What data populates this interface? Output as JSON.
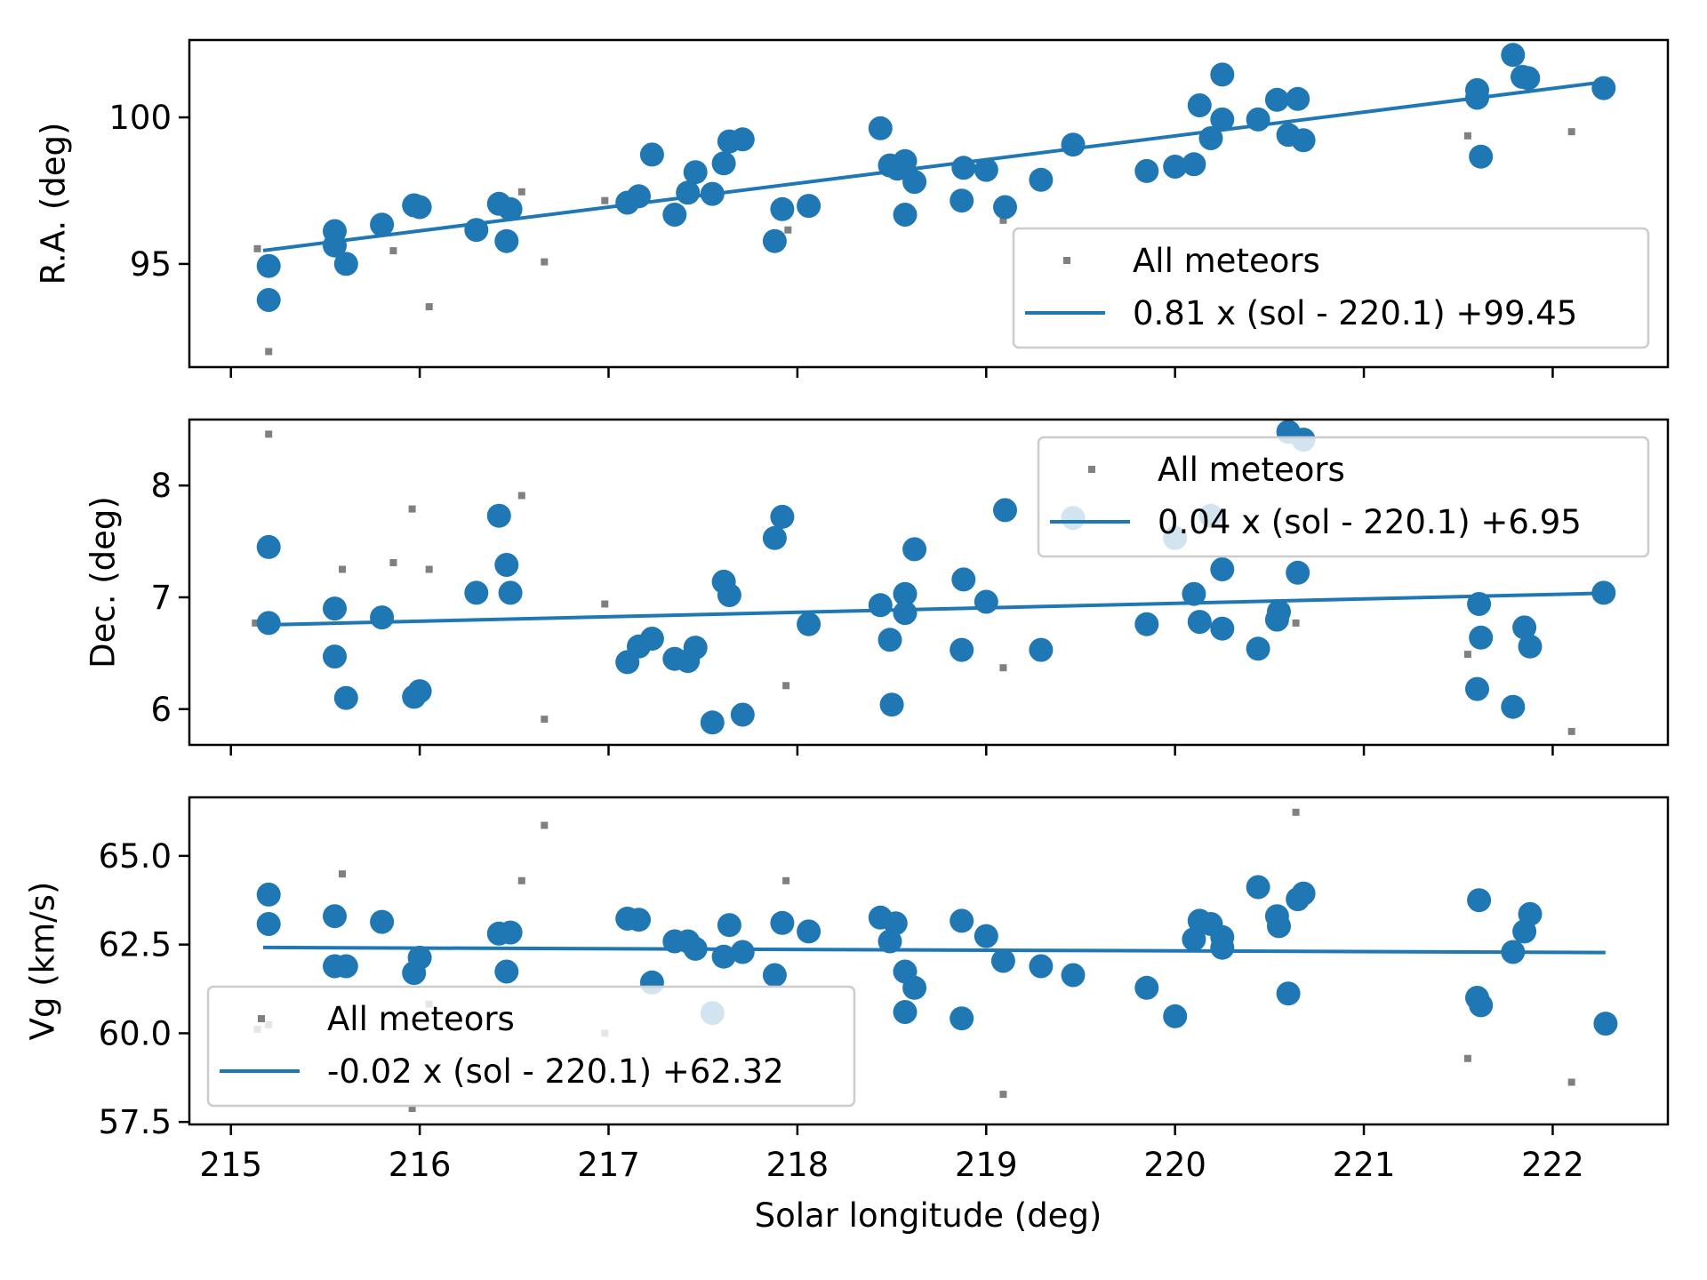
{
  "chart_data": {
    "type": "scatter",
    "layout": "3 vertically stacked panels sharing x axis",
    "xlabel": "Solar longitude (deg)",
    "xlim": [
      214.78,
      222.61
    ],
    "x_ticks": [
      215,
      216,
      217,
      218,
      219,
      220,
      221,
      222
    ],
    "x_tick_labels": [
      "215",
      "216",
      "217",
      "218",
      "219",
      "220",
      "221",
      "222"
    ],
    "colors": {
      "selected": "#1f77b4",
      "all": "#808080",
      "fit": "#1f77b4",
      "legend_edge": "#cccccc"
    },
    "panels": [
      {
        "id": "ra",
        "ylabel": "R.A. (deg)",
        "ylim": [
          91.48,
          102.64
        ],
        "y_ticks": [
          95,
          100
        ],
        "y_tick_labels": [
          "95",
          "100"
        ],
        "legend": {
          "position": "lower right",
          "entries": [
            "All meteors",
            "0.81 x (sol - 220.1) +99.45"
          ]
        },
        "fit": {
          "slope": 0.81,
          "ref": 220.1,
          "intercept": 99.45,
          "x_range": [
            215.18,
            222.27
          ]
        },
        "selected": [
          [
            215.2,
            94.93
          ],
          [
            215.2,
            93.77
          ],
          [
            215.55,
            96.12
          ],
          [
            215.55,
            95.63
          ],
          [
            215.61,
            95.0
          ],
          [
            215.8,
            96.34
          ],
          [
            215.97,
            97.0
          ],
          [
            216.0,
            96.94
          ],
          [
            216.3,
            96.16
          ],
          [
            216.42,
            97.05
          ],
          [
            216.48,
            96.87
          ],
          [
            216.46,
            95.78
          ],
          [
            217.1,
            97.09
          ],
          [
            217.16,
            97.31
          ],
          [
            217.23,
            98.73
          ],
          [
            217.35,
            96.68
          ],
          [
            217.42,
            97.43
          ],
          [
            217.46,
            98.13
          ],
          [
            217.55,
            97.39
          ],
          [
            217.61,
            98.43
          ],
          [
            217.64,
            99.18
          ],
          [
            217.71,
            99.25
          ],
          [
            217.88,
            95.78
          ],
          [
            217.92,
            96.87
          ],
          [
            218.06,
            96.98
          ],
          [
            218.44,
            99.63
          ],
          [
            218.49,
            98.36
          ],
          [
            218.53,
            98.25
          ],
          [
            218.57,
            98.51
          ],
          [
            218.57,
            96.68
          ],
          [
            218.62,
            97.8
          ],
          [
            218.87,
            97.16
          ],
          [
            218.88,
            98.28
          ],
          [
            219.0,
            98.21
          ],
          [
            219.1,
            96.94
          ],
          [
            219.29,
            97.87
          ],
          [
            219.46,
            99.07
          ],
          [
            219.85,
            98.17
          ],
          [
            220.0,
            98.32
          ],
          [
            220.1,
            98.4
          ],
          [
            220.13,
            100.41
          ],
          [
            220.19,
            99.29
          ],
          [
            220.25,
            99.93
          ],
          [
            220.25,
            101.46
          ],
          [
            220.44,
            99.93
          ],
          [
            220.54,
            100.6
          ],
          [
            220.6,
            99.4
          ],
          [
            220.65,
            100.63
          ],
          [
            220.68,
            99.22
          ],
          [
            221.6,
            100.93
          ],
          [
            221.6,
            100.67
          ],
          [
            221.62,
            98.66
          ],
          [
            221.79,
            102.13
          ],
          [
            221.84,
            101.38
          ],
          [
            221.87,
            101.34
          ],
          [
            222.27,
            101.0
          ]
        ],
        "all": [
          [
            215.14,
            95.52
          ],
          [
            215.2,
            92.01
          ],
          [
            215.86,
            95.45
          ],
          [
            216.05,
            93.54
          ],
          [
            216.54,
            97.46
          ],
          [
            216.66,
            95.07
          ],
          [
            216.98,
            97.16
          ],
          [
            217.95,
            96.16
          ],
          [
            219.09,
            96.49
          ],
          [
            221.55,
            99.37
          ],
          [
            222.1,
            99.51
          ]
        ]
      },
      {
        "id": "dec",
        "ylabel": "Dec. (deg)",
        "ylim": [
          5.68,
          8.59
        ],
        "y_ticks": [
          6,
          7,
          8
        ],
        "y_tick_labels": [
          "6",
          "7",
          "8"
        ],
        "legend": {
          "position": "upper right",
          "entries": [
            "All meteors",
            "0.04 x (sol - 220.1) +6.95"
          ]
        },
        "fit": {
          "slope": 0.04,
          "ref": 220.1,
          "intercept": 6.95,
          "x_range": [
            215.18,
            222.27
          ]
        },
        "selected": [
          [
            215.2,
            7.45
          ],
          [
            215.2,
            6.77
          ],
          [
            215.55,
            6.9
          ],
          [
            215.55,
            6.47
          ],
          [
            215.61,
            6.1
          ],
          [
            215.8,
            6.82
          ],
          [
            215.97,
            6.11
          ],
          [
            216.0,
            6.16
          ],
          [
            216.3,
            7.04
          ],
          [
            216.42,
            7.73
          ],
          [
            216.46,
            7.29
          ],
          [
            216.48,
            7.04
          ],
          [
            217.1,
            6.42
          ],
          [
            217.16,
            6.56
          ],
          [
            217.23,
            6.63
          ],
          [
            217.35,
            6.45
          ],
          [
            217.42,
            6.43
          ],
          [
            217.46,
            6.55
          ],
          [
            217.55,
            5.88
          ],
          [
            217.61,
            7.14
          ],
          [
            217.64,
            7.02
          ],
          [
            217.71,
            5.95
          ],
          [
            217.88,
            7.53
          ],
          [
            217.92,
            7.72
          ],
          [
            218.06,
            6.76
          ],
          [
            218.44,
            6.93
          ],
          [
            218.49,
            6.62
          ],
          [
            218.5,
            6.04
          ],
          [
            218.57,
            7.03
          ],
          [
            218.57,
            6.86
          ],
          [
            218.62,
            7.43
          ],
          [
            218.87,
            6.53
          ],
          [
            218.88,
            7.16
          ],
          [
            219.0,
            6.96
          ],
          [
            219.1,
            7.78
          ],
          [
            219.29,
            6.53
          ],
          [
            219.46,
            7.71
          ],
          [
            219.85,
            6.76
          ],
          [
            220.0,
            7.53
          ],
          [
            220.1,
            7.03
          ],
          [
            220.13,
            6.78
          ],
          [
            220.19,
            7.73
          ],
          [
            220.25,
            7.25
          ],
          [
            220.25,
            6.72
          ],
          [
            220.44,
            6.54
          ],
          [
            220.54,
            6.8
          ],
          [
            220.55,
            6.87
          ],
          [
            220.6,
            8.48
          ],
          [
            220.65,
            7.22
          ],
          [
            220.68,
            8.41
          ],
          [
            221.61,
            6.94
          ],
          [
            221.6,
            6.18
          ],
          [
            221.62,
            6.64
          ],
          [
            221.79,
            6.02
          ],
          [
            221.85,
            6.73
          ],
          [
            221.88,
            6.56
          ],
          [
            222.27,
            7.04
          ]
        ],
        "all": [
          [
            215.13,
            6.77
          ],
          [
            215.2,
            8.46
          ],
          [
            215.59,
            7.25
          ],
          [
            215.86,
            7.31
          ],
          [
            215.96,
            7.79
          ],
          [
            216.05,
            7.25
          ],
          [
            216.54,
            7.91
          ],
          [
            216.66,
            5.91
          ],
          [
            216.98,
            6.94
          ],
          [
            217.94,
            6.21
          ],
          [
            219.09,
            6.37
          ],
          [
            220.64,
            6.77
          ],
          [
            221.55,
            6.49
          ],
          [
            222.1,
            5.8
          ]
        ]
      },
      {
        "id": "vg",
        "ylabel": "Vg (km/s)",
        "ylim": [
          57.43,
          66.65
        ],
        "y_ticks": [
          57.5,
          60.0,
          62.5,
          65.0
        ],
        "y_tick_labels": [
          "57.5",
          "60.0",
          "62.5",
          "65.0"
        ],
        "legend": {
          "position": "lower left",
          "entries": [
            "All meteors",
            "-0.02 x (sol - 220.1) +62.32"
          ]
        },
        "fit": {
          "slope": -0.02,
          "ref": 220.1,
          "intercept": 62.32,
          "x_range": [
            215.18,
            222.27
          ]
        },
        "selected": [
          [
            215.2,
            63.91
          ],
          [
            215.2,
            63.08
          ],
          [
            215.55,
            63.3
          ],
          [
            215.55,
            61.89
          ],
          [
            215.61,
            61.89
          ],
          [
            215.8,
            63.14
          ],
          [
            215.97,
            61.7
          ],
          [
            216.0,
            62.13
          ],
          [
            216.42,
            62.81
          ],
          [
            216.48,
            62.84
          ],
          [
            216.46,
            61.74
          ],
          [
            217.1,
            63.23
          ],
          [
            217.16,
            63.2
          ],
          [
            217.23,
            61.43
          ],
          [
            217.35,
            62.59
          ],
          [
            217.42,
            62.59
          ],
          [
            217.46,
            62.38
          ],
          [
            217.55,
            60.57
          ],
          [
            217.61,
            62.16
          ],
          [
            217.64,
            63.05
          ],
          [
            217.71,
            62.29
          ],
          [
            217.88,
            61.64
          ],
          [
            217.92,
            63.11
          ],
          [
            218.06,
            62.87
          ],
          [
            218.44,
            63.26
          ],
          [
            218.49,
            62.59
          ],
          [
            218.52,
            63.1
          ],
          [
            218.57,
            61.74
          ],
          [
            218.62,
            61.28
          ],
          [
            218.57,
            60.6
          ],
          [
            218.87,
            63.17
          ],
          [
            218.87,
            60.42
          ],
          [
            219.0,
            62.74
          ],
          [
            219.09,
            62.04
          ],
          [
            219.29,
            61.89
          ],
          [
            219.46,
            61.64
          ],
          [
            219.85,
            61.28
          ],
          [
            220.0,
            60.48
          ],
          [
            220.1,
            62.65
          ],
          [
            220.13,
            63.17
          ],
          [
            220.19,
            63.08
          ],
          [
            220.25,
            62.71
          ],
          [
            220.25,
            62.41
          ],
          [
            220.44,
            64.12
          ],
          [
            220.54,
            63.3
          ],
          [
            220.55,
            63.02
          ],
          [
            220.6,
            61.12
          ],
          [
            220.65,
            63.78
          ],
          [
            220.68,
            63.94
          ],
          [
            221.61,
            63.75
          ],
          [
            221.6,
            61.0
          ],
          [
            221.62,
            60.79
          ],
          [
            221.79,
            62.29
          ],
          [
            221.85,
            62.87
          ],
          [
            221.88,
            63.36
          ],
          [
            222.28,
            60.27
          ]
        ],
        "all": [
          [
            215.14,
            60.11
          ],
          [
            215.2,
            60.24
          ],
          [
            215.59,
            64.49
          ],
          [
            215.96,
            57.88
          ],
          [
            216.05,
            60.82
          ],
          [
            216.54,
            64.3
          ],
          [
            216.66,
            65.86
          ],
          [
            216.98,
            60.0
          ],
          [
            217.94,
            64.3
          ],
          [
            219.09,
            58.28
          ],
          [
            220.64,
            66.23
          ],
          [
            221.55,
            59.29
          ],
          [
            222.1,
            58.62
          ]
        ]
      }
    ]
  }
}
